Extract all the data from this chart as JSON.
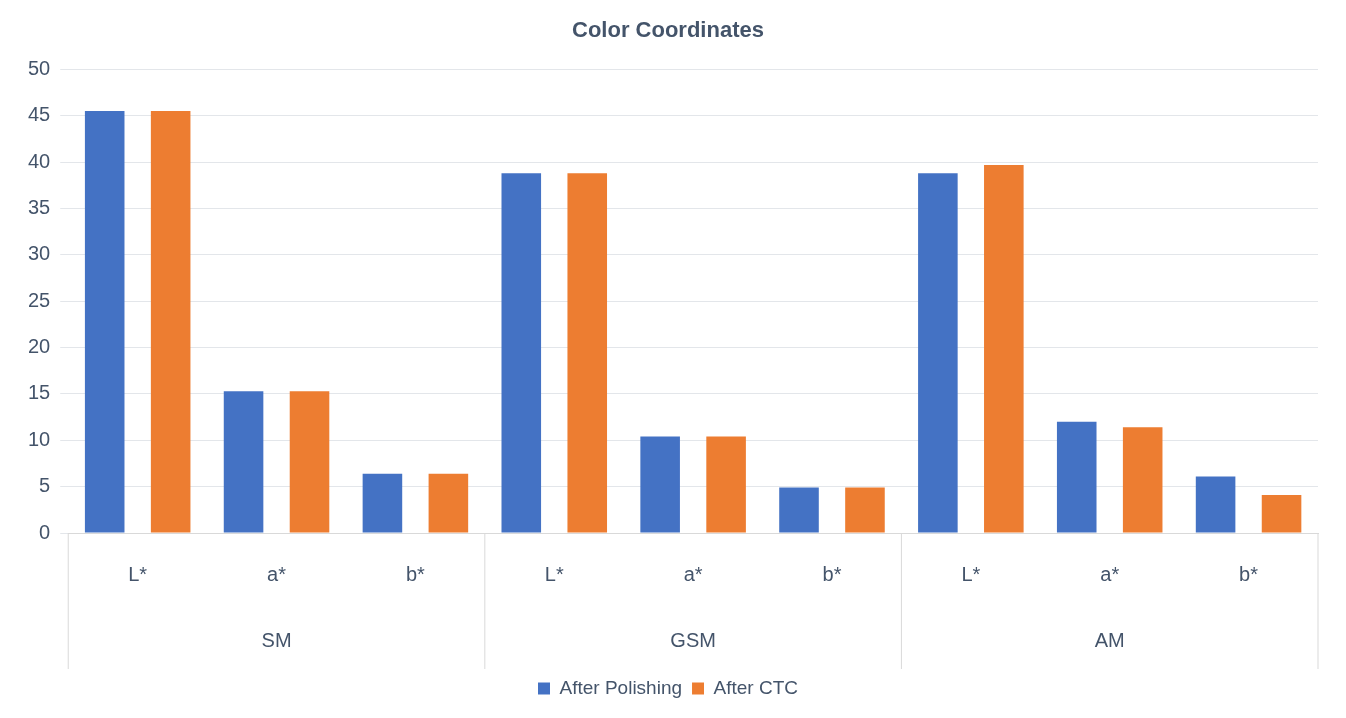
{
  "chart_data": {
    "type": "bar",
    "title": "Color Coordinates",
    "categories": [
      "L*",
      "a*",
      "b*",
      "L*",
      "a*",
      "b*",
      "L*",
      "a*",
      "b*"
    ],
    "series": [
      {
        "name": "After Polishing",
        "color": "#4472c4",
        "values": [
          45.5,
          15.3,
          6.4,
          38.8,
          10.4,
          4.9,
          38.8,
          12.0,
          6.1
        ]
      },
      {
        "name": "After CTC",
        "color": "#ed7d31",
        "values": [
          45.5,
          15.3,
          6.4,
          38.8,
          10.4,
          4.9,
          39.7,
          11.4,
          4.1
        ]
      }
    ],
    "annotations": [
      "SM",
      "GSM",
      "AM"
    ],
    "ylim": [
      0,
      50
    ],
    "yticks": [
      0,
      5,
      10,
      15,
      20,
      25,
      30,
      35,
      40,
      45,
      50
    ],
    "grid": "y",
    "legend": "bottom"
  }
}
